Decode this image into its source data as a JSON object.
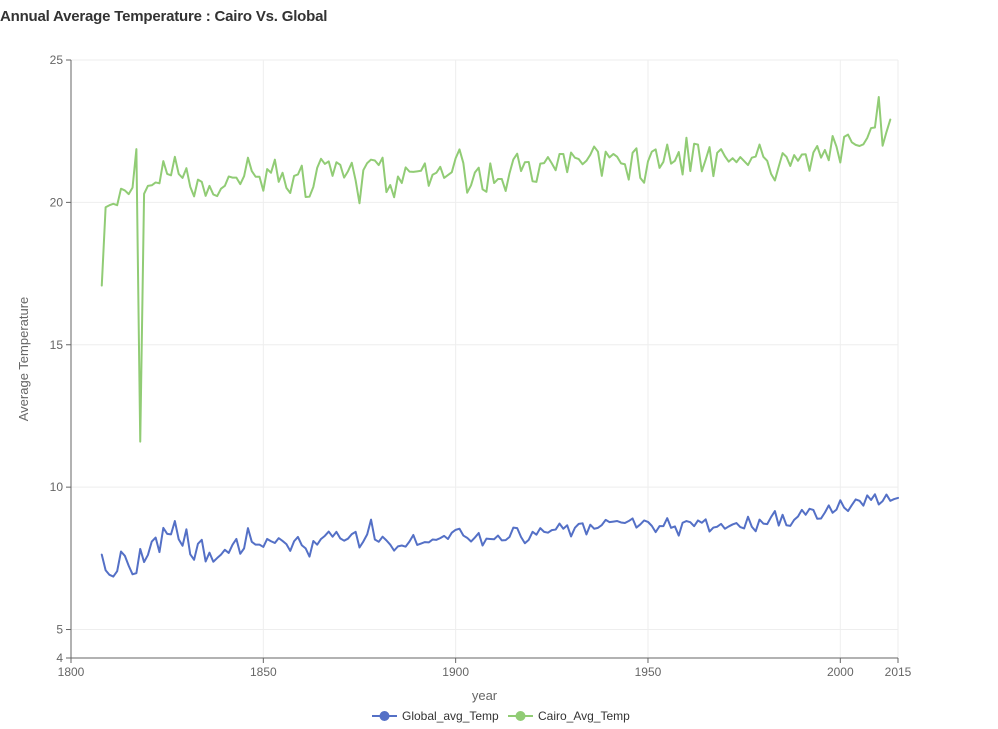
{
  "chart_data": {
    "type": "line",
    "title": "Annual Average Temperature : Cairo Vs. Global",
    "xlabel": "year",
    "ylabel": "Average Temperature",
    "xlim": [
      1800,
      2015
    ],
    "ylim": [
      4,
      25
    ],
    "x_ticks": [
      1800,
      1850,
      1900,
      1950,
      2000,
      2015
    ],
    "y_ticks": [
      4,
      5,
      10,
      15,
      20,
      25
    ],
    "grid": true,
    "legend_position": "bottom-center",
    "x_start": 1808,
    "series": [
      {
        "name": "Global_avg_Temp",
        "color": "#5470c6",
        "values": [
          7.63,
          7.08,
          6.92,
          6.86,
          7.05,
          7.74,
          7.59,
          7.24,
          6.94,
          6.98,
          7.83,
          7.37,
          7.62,
          8.09,
          8.23,
          7.72,
          8.57,
          8.36,
          8.34,
          8.81,
          8.17,
          7.94,
          8.52,
          7.64,
          7.45,
          8.01,
          8.15,
          7.39,
          7.7,
          7.38,
          7.51,
          7.63,
          7.8,
          7.69,
          7.98,
          8.18,
          7.66,
          7.85,
          8.56,
          8.08,
          7.98,
          7.98,
          7.9,
          8.18,
          8.1,
          8.04,
          8.21,
          8.11,
          8.0,
          7.76,
          8.1,
          8.25,
          7.96,
          7.85,
          7.56,
          8.11,
          7.98,
          8.18,
          8.29,
          8.44,
          8.26,
          8.43,
          8.2,
          8.12,
          8.19,
          8.35,
          8.43,
          7.88,
          8.09,
          8.34,
          8.86,
          8.16,
          8.08,
          8.26,
          8.13,
          7.98,
          7.77,
          7.92,
          7.95,
          7.91,
          8.09,
          8.32,
          7.97,
          8.02,
          8.07,
          8.06,
          8.16,
          8.15,
          8.21,
          8.29,
          8.18,
          8.4,
          8.5,
          8.54,
          8.3,
          8.22,
          8.09,
          8.23,
          8.39,
          7.95,
          8.19,
          8.18,
          8.17,
          8.3,
          8.13,
          8.14,
          8.25,
          8.58,
          8.56,
          8.25,
          8.03,
          8.15,
          8.43,
          8.33,
          8.56,
          8.43,
          8.4,
          8.49,
          8.51,
          8.72,
          8.54,
          8.66,
          8.27,
          8.57,
          8.71,
          8.73,
          8.34,
          8.68,
          8.54,
          8.57,
          8.67,
          8.85,
          8.77,
          8.79,
          8.81,
          8.76,
          8.74,
          8.81,
          8.9,
          8.58,
          8.69,
          8.83,
          8.78,
          8.64,
          8.42,
          8.63,
          8.63,
          8.91,
          8.57,
          8.62,
          8.3,
          8.75,
          8.81,
          8.77,
          8.63,
          8.83,
          8.75,
          8.87,
          8.44,
          8.58,
          8.61,
          8.71,
          8.54,
          8.62,
          8.69,
          8.74,
          8.6,
          8.55,
          8.96,
          8.61,
          8.45,
          8.86,
          8.72,
          8.7,
          8.95,
          9.16,
          8.65,
          9.03,
          8.66,
          8.64,
          8.85,
          8.97,
          9.2,
          9.03,
          9.24,
          9.2,
          8.89,
          8.9,
          9.11,
          9.36,
          9.1,
          9.21,
          9.54,
          9.28,
          9.16,
          9.37,
          9.57,
          9.52,
          9.35,
          9.71,
          9.55,
          9.75,
          9.39,
          9.51,
          9.74,
          9.52,
          9.58,
          9.62
        ]
      },
      {
        "name": "Cairo_Avg_Temp",
        "color": "#91cc75",
        "values": [
          17.08,
          19.83,
          19.9,
          19.95,
          19.9,
          20.48,
          20.42,
          20.29,
          20.52,
          21.87,
          11.6,
          20.3,
          20.58,
          20.6,
          20.7,
          20.67,
          21.45,
          21.0,
          20.95,
          21.6,
          21.0,
          20.86,
          21.2,
          20.55,
          20.21,
          20.8,
          20.72,
          20.23,
          20.58,
          20.28,
          20.22,
          20.48,
          20.58,
          20.91,
          20.87,
          20.87,
          20.64,
          20.92,
          21.57,
          21.1,
          20.9,
          20.9,
          20.41,
          21.17,
          21.04,
          21.5,
          20.72,
          21.04,
          20.51,
          20.33,
          20.93,
          20.98,
          21.29,
          20.19,
          20.2,
          20.54,
          21.21,
          21.53,
          21.35,
          21.44,
          20.93,
          21.41,
          21.32,
          20.87,
          21.09,
          21.39,
          20.77,
          19.97,
          21.13,
          21.38,
          21.5,
          21.47,
          21.31,
          21.57,
          20.36,
          20.61,
          20.18,
          20.91,
          20.68,
          21.23,
          21.08,
          21.07,
          21.09,
          21.11,
          21.37,
          20.58,
          20.97,
          21.04,
          21.25,
          20.86,
          20.96,
          21.06,
          21.55,
          21.86,
          21.38,
          20.34,
          20.6,
          21.05,
          21.22,
          20.46,
          20.37,
          21.37,
          20.68,
          20.82,
          20.82,
          20.4,
          21.02,
          21.51,
          21.71,
          21.1,
          21.41,
          21.42,
          20.74,
          20.72,
          21.36,
          21.38,
          21.59,
          21.37,
          21.13,
          21.7,
          21.7,
          21.06,
          21.75,
          21.57,
          21.52,
          21.34,
          21.46,
          21.67,
          21.96,
          21.78,
          20.93,
          21.78,
          21.58,
          21.7,
          21.6,
          21.37,
          21.34,
          20.8,
          21.74,
          21.9,
          20.86,
          20.69,
          21.44,
          21.78,
          21.86,
          21.21,
          21.42,
          22.03,
          21.36,
          21.46,
          21.77,
          20.98,
          22.27,
          21.1,
          22.06,
          22.03,
          21.09,
          21.5,
          21.94,
          20.92,
          21.74,
          21.87,
          21.62,
          21.43,
          21.55,
          21.41,
          21.59,
          21.45,
          21.31,
          21.57,
          21.61,
          22.03,
          21.6,
          21.46,
          21.0,
          20.77,
          21.26,
          21.73,
          21.6,
          21.28,
          21.66,
          21.46,
          21.68,
          21.69,
          21.11,
          21.75,
          21.98,
          21.57,
          21.84,
          21.48,
          22.33,
          21.96,
          21.4,
          22.3,
          22.38,
          22.11,
          22.02,
          21.98,
          22.04,
          22.26,
          22.61,
          22.63,
          23.7,
          21.99,
          22.47,
          22.91
        ]
      }
    ]
  }
}
